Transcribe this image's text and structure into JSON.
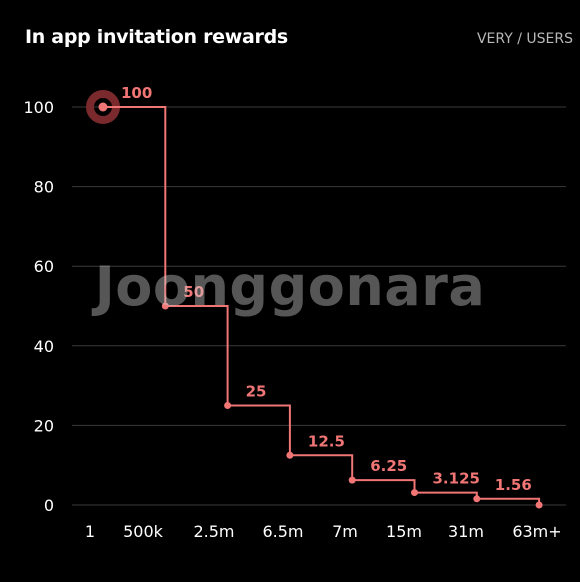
{
  "header": {
    "title": "In app invitation rewards",
    "unit_label": "VERY / USERS"
  },
  "watermark": "Joonggonara",
  "colors": {
    "background": "#000000",
    "grid": "#3a3a3a",
    "line": "#f07575",
    "highlight_ring": "#7a2a2d",
    "axis_text": "#ffffff",
    "label_text": "#f07575"
  },
  "chart_data": {
    "type": "line",
    "step": true,
    "title": "In app invitation rewards",
    "unit": "VERY / USERS",
    "categories": [
      "1",
      "500k",
      "2.5m",
      "6.5m",
      "7m",
      "15m",
      "31m",
      "63m+"
    ],
    "series": [
      {
        "values": [
          100,
          50,
          25,
          12.5,
          6.25,
          3.125,
          1.56,
          0
        ],
        "labels": [
          "100",
          "50",
          "25",
          "12.5",
          "6.25",
          "3.125",
          "1.56",
          ""
        ]
      }
    ],
    "y_ticks": [
      0,
      20,
      40,
      60,
      80,
      100
    ],
    "ylim": [
      0,
      100
    ],
    "grid": true,
    "highlighted_point": 0
  }
}
